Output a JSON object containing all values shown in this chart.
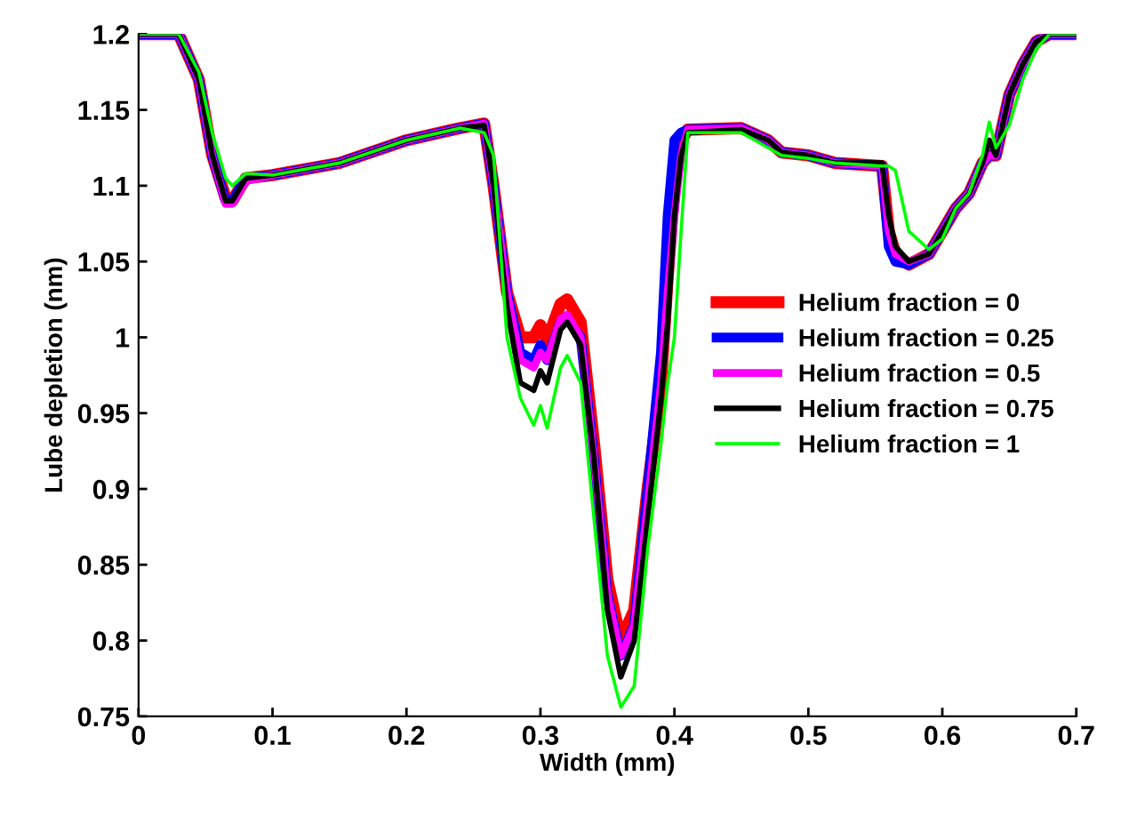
{
  "chart_data": {
    "type": "line",
    "xlabel": "Width (mm)",
    "ylabel": "Lube depletion (nm)",
    "x": [
      0,
      0.03,
      0.045,
      0.055,
      0.065,
      0.07,
      0.08,
      0.1,
      0.15,
      0.2,
      0.24,
      0.258,
      0.265,
      0.275,
      0.285,
      0.295,
      0.3,
      0.305,
      0.315,
      0.32,
      0.33,
      0.34,
      0.35,
      0.36,
      0.37,
      0.38,
      0.39,
      0.395,
      0.4,
      0.405,
      0.41,
      0.45,
      0.47,
      0.48,
      0.5,
      0.52,
      0.555,
      0.56,
      0.565,
      0.575,
      0.59,
      0.6,
      0.61,
      0.62,
      0.63,
      0.635,
      0.64,
      0.65,
      0.66,
      0.67,
      0.68,
      0.7
    ],
    "series": [
      {
        "name": "Helium fraction = 0",
        "color": "#ff0000",
        "values": [
          1.2,
          1.2,
          1.17,
          1.12,
          1.092,
          1.09,
          1.105,
          1.107,
          1.115,
          1.13,
          1.138,
          1.141,
          1.1,
          1.03,
          1.0,
          1.0,
          1.008,
          0.998,
          1.022,
          1.025,
          1.01,
          0.93,
          0.84,
          0.8,
          0.82,
          0.9,
          0.97,
          1.04,
          1.1,
          1.13,
          1.137,
          1.138,
          1.13,
          1.122,
          1.12,
          1.115,
          1.113,
          1.07,
          1.055,
          1.048,
          1.055,
          1.07,
          1.085,
          1.095,
          1.115,
          1.12,
          1.12,
          1.16,
          1.18,
          1.195,
          1.2,
          1.2
        ]
      },
      {
        "name": "Helium fraction = 0.25",
        "color": "#0000ff",
        "values": [
          1.2,
          1.2,
          1.17,
          1.12,
          1.09,
          1.09,
          1.105,
          1.107,
          1.115,
          1.13,
          1.138,
          1.141,
          1.1,
          1.03,
          0.99,
          0.985,
          0.995,
          0.985,
          1.01,
          1.012,
          1.0,
          0.92,
          0.83,
          0.79,
          0.81,
          0.9,
          0.99,
          1.08,
          1.13,
          1.135,
          1.137,
          1.138,
          1.13,
          1.122,
          1.12,
          1.115,
          1.113,
          1.06,
          1.05,
          1.048,
          1.055,
          1.07,
          1.085,
          1.095,
          1.115,
          1.12,
          1.12,
          1.16,
          1.18,
          1.195,
          1.2,
          1.2
        ]
      },
      {
        "name": "Helium fraction = 0.5",
        "color": "#ff00ff",
        "values": [
          1.2,
          1.2,
          1.17,
          1.12,
          1.088,
          1.088,
          1.103,
          1.107,
          1.115,
          1.13,
          1.138,
          1.141,
          1.1,
          1.03,
          0.985,
          0.98,
          0.99,
          0.985,
          1.012,
          1.015,
          1.0,
          0.92,
          0.83,
          0.79,
          0.81,
          0.89,
          0.97,
          1.03,
          1.08,
          1.12,
          1.137,
          1.138,
          1.13,
          1.122,
          1.12,
          1.115,
          1.113,
          1.07,
          1.055,
          1.05,
          1.055,
          1.07,
          1.085,
          1.095,
          1.115,
          1.12,
          1.12,
          1.16,
          1.18,
          1.195,
          1.2,
          1.2
        ]
      },
      {
        "name": "Helium fraction = 0.75",
        "color": "#000000",
        "values": [
          1.2,
          1.2,
          1.17,
          1.12,
          1.09,
          1.09,
          1.105,
          1.107,
          1.115,
          1.13,
          1.138,
          1.14,
          1.1,
          1.02,
          0.97,
          0.965,
          0.978,
          0.97,
          1.005,
          1.01,
          0.995,
          0.92,
          0.82,
          0.776,
          0.8,
          0.88,
          0.96,
          1.01,
          1.08,
          1.12,
          1.135,
          1.137,
          1.13,
          1.122,
          1.12,
          1.115,
          1.115,
          1.08,
          1.06,
          1.05,
          1.055,
          1.07,
          1.085,
          1.095,
          1.115,
          1.13,
          1.12,
          1.16,
          1.18,
          1.195,
          1.2,
          1.2
        ]
      },
      {
        "name": "Helium fraction = 1",
        "color": "#00ff00",
        "values": [
          1.2,
          1.2,
          1.175,
          1.135,
          1.105,
          1.1,
          1.108,
          1.107,
          1.115,
          1.13,
          1.138,
          1.135,
          1.12,
          1.0,
          0.96,
          0.942,
          0.955,
          0.94,
          0.98,
          0.988,
          0.97,
          0.88,
          0.79,
          0.756,
          0.77,
          0.86,
          0.93,
          0.97,
          1.0,
          1.07,
          1.135,
          1.135,
          1.125,
          1.12,
          1.118,
          1.115,
          1.113,
          1.113,
          1.11,
          1.07,
          1.058,
          1.065,
          1.085,
          1.095,
          1.12,
          1.142,
          1.125,
          1.14,
          1.17,
          1.19,
          1.2,
          1.2
        ]
      }
    ],
    "xlim": [
      0,
      0.7
    ],
    "ylim": [
      0.75,
      1.2
    ],
    "xticks": [
      0,
      0.1,
      0.2,
      0.3,
      0.4,
      0.5,
      0.6,
      0.7
    ],
    "yticks": [
      0.75,
      0.8,
      0.85,
      0.9,
      0.95,
      1,
      1.05,
      1.1,
      1.15,
      1.2
    ],
    "legend": "center right",
    "grid": false,
    "line_style": "solid"
  }
}
